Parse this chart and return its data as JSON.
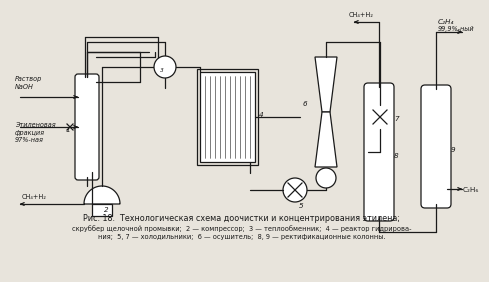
{
  "title_line1": "Рис. 18.  Технологическая схема доочистки и концентрирования этилена;",
  "title_line2": "скруббер щелочной промывки;  2 — компрессор;  3 — теплообменник;  4 — реактор гидрирова-",
  "title_line3": "ния;  5, 7 — холодильники;  6 — осушитель;  8, 9 — ректификационные колонны.",
  "bg_color": "#e8e4dc",
  "line_color": "#1a1a1a",
  "label_NaOH": "Раствор\nNaOH",
  "label_ethylene": "Этиленовая\nфракция\n97%-ная",
  "label_ch4h2_bot": "CH₄+H₂",
  "label_ch4h2_top": "CH₄+H₂",
  "label_c2h4": "C₂H₄",
  "label_c2h4b": "99,9%-ный",
  "label_c2h6": "C₂H₆",
  "n1": "1",
  "n2": "2",
  "n3": "3",
  "n4": "4",
  "n5": "5",
  "n6": "6",
  "n7": "7",
  "n8": "8",
  "n9": "9"
}
